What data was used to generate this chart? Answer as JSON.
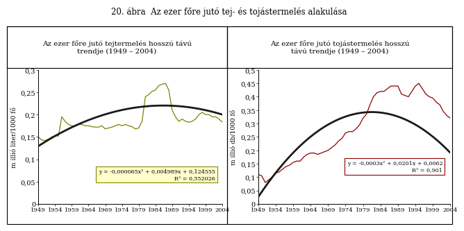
{
  "title": "20. ábra  Az ezer főre jutó tej- és tojástermelés alakulása",
  "left_title": "Az ezer főre jutó tejtermelés hosszú távú\ntrendje (1949 – 2004)",
  "right_title": "Az ezer főre jutó tojástermelés hosszú\ntávú trendje (1949 – 2004)",
  "left_ylabel": "m illió liter/1000 fő",
  "right_ylabel": "m illió db/1000 fő",
  "left_eq_line1": "y = -0,000065x² + 0,004989x + 0,124555",
  "left_eq_line2": "R² = 0,552026",
  "right_eq_line1": "y = -0,0003x² + 0,0201x + 0,0062",
  "right_eq_line2": "R² = 0,901",
  "years": [
    1949,
    1950,
    1951,
    1952,
    1953,
    1954,
    1955,
    1956,
    1957,
    1958,
    1959,
    1960,
    1961,
    1962,
    1963,
    1964,
    1965,
    1966,
    1967,
    1968,
    1969,
    1970,
    1971,
    1972,
    1973,
    1974,
    1975,
    1976,
    1977,
    1978,
    1979,
    1980,
    1981,
    1982,
    1983,
    1984,
    1985,
    1986,
    1987,
    1988,
    1989,
    1990,
    1991,
    1992,
    1993,
    1994,
    1995,
    1996,
    1997,
    1998,
    1999,
    2000,
    2001,
    2002,
    2003,
    2004
  ],
  "milk_data": [
    0.15,
    0.143,
    0.142,
    0.145,
    0.15,
    0.153,
    0.152,
    0.195,
    0.185,
    0.178,
    0.175,
    0.175,
    0.178,
    0.178,
    0.175,
    0.175,
    0.173,
    0.172,
    0.172,
    0.175,
    0.168,
    0.17,
    0.172,
    0.175,
    0.178,
    0.175,
    0.178,
    0.175,
    0.173,
    0.168,
    0.17,
    0.185,
    0.24,
    0.245,
    0.252,
    0.255,
    0.265,
    0.268,
    0.27,
    0.255,
    0.21,
    0.195,
    0.185,
    0.19,
    0.185,
    0.183,
    0.185,
    0.19,
    0.2,
    0.205,
    0.2,
    0.2,
    0.195,
    0.195,
    0.19,
    0.183
  ],
  "egg_data": [
    0.11,
    0.105,
    0.08,
    0.09,
    0.1,
    0.115,
    0.12,
    0.13,
    0.14,
    0.145,
    0.155,
    0.16,
    0.16,
    0.175,
    0.185,
    0.19,
    0.19,
    0.185,
    0.19,
    0.195,
    0.2,
    0.21,
    0.22,
    0.235,
    0.245,
    0.265,
    0.27,
    0.27,
    0.28,
    0.295,
    0.32,
    0.335,
    0.37,
    0.4,
    0.415,
    0.42,
    0.42,
    0.43,
    0.44,
    0.44,
    0.44,
    0.41,
    0.405,
    0.4,
    0.42,
    0.44,
    0.45,
    0.43,
    0.41,
    0.4,
    0.395,
    0.38,
    0.37,
    0.345,
    0.33,
    0.32
  ],
  "left_color": "#808000",
  "right_color": "#8B0000",
  "trend_color": "#1a1a1a",
  "left_ylim": [
    0,
    0.3
  ],
  "right_ylim": [
    0,
    0.5
  ],
  "left_yticks": [
    0,
    0.05,
    0.1,
    0.15,
    0.2,
    0.25,
    0.3
  ],
  "right_yticks": [
    0,
    0.05,
    0.1,
    0.15,
    0.2,
    0.25,
    0.3,
    0.35,
    0.4,
    0.45,
    0.5
  ],
  "xtick_labels": [
    "1949",
    "1954",
    "1959",
    "1964",
    "1969",
    "1974",
    "1979",
    "1984",
    "1989",
    "1994",
    "1999",
    "2004"
  ],
  "xtick_years": [
    1949,
    1954,
    1959,
    1964,
    1969,
    1974,
    1979,
    1984,
    1989,
    1994,
    1999,
    2004
  ]
}
